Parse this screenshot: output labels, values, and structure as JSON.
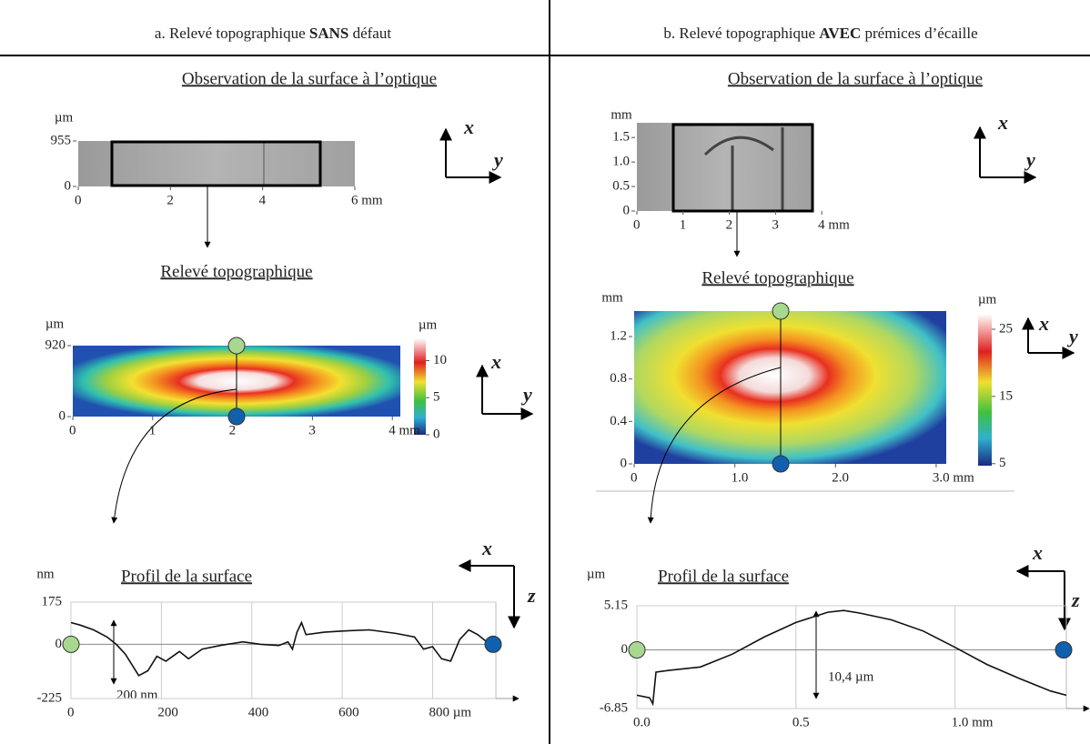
{
  "vectors": {
    "x": "x",
    "y": "y",
    "z": "z"
  },
  "left": {
    "title": {
      "prefix": "a. Relevé topographique ",
      "bold": "SANS",
      "suffix": " défaut"
    },
    "optical": {
      "heading": "Observation de la surface à l’optique",
      "y_unit": "µm",
      "xlim": [
        0,
        6
      ],
      "ylim": [
        0,
        955
      ],
      "yticks": [
        0,
        955
      ],
      "xticks": [
        0,
        2,
        4,
        {
          "value": 6,
          "label": "6 mm"
        }
      ]
    },
    "topography": {
      "heading": "Relevé topographique",
      "y_unit": "µm",
      "xlim": [
        0,
        4.1
      ],
      "ylim": [
        0,
        920
      ],
      "yticks": [
        0,
        920
      ],
      "xticks": [
        0,
        1,
        2,
        3,
        {
          "value": 4,
          "label": "4 mm"
        }
      ],
      "colorbar_unit": "µm",
      "colorbar_lim": [
        0,
        13
      ],
      "colorbar_ticks": [
        0,
        5,
        10
      ]
    },
    "profile": {
      "heading": "Profil de la surface",
      "y_unit": "nm",
      "xlim": [
        0,
        940
      ],
      "ylim": [
        -225,
        175
      ],
      "yticks": [
        -225,
        0,
        175
      ],
      "xticks": [
        0,
        200,
        400,
        600,
        {
          "value": 800,
          "label": "800 µm"
        }
      ],
      "x": [
        0,
        20,
        50,
        80,
        100,
        120,
        140,
        150,
        170,
        190,
        210,
        240,
        260,
        290,
        330,
        380,
        420,
        460,
        480,
        490,
        500,
        510,
        520,
        560,
        600,
        660,
        720,
        760,
        780,
        800,
        820,
        840,
        860,
        880,
        900,
        920
      ],
      "values": [
        90,
        80,
        60,
        30,
        0,
        -40,
        -100,
        -130,
        -110,
        -50,
        -70,
        -30,
        -60,
        -20,
        -5,
        10,
        0,
        -5,
        10,
        -20,
        50,
        90,
        40,
        50,
        55,
        60,
        45,
        30,
        -20,
        -10,
        -60,
        -70,
        20,
        60,
        40,
        10
      ],
      "annotation": "200 nm"
    }
  },
  "right": {
    "title": {
      "prefix": "b. Relevé topographique ",
      "bold": "AVEC",
      "suffix": " prémices d’écaille"
    },
    "optical": {
      "heading": "Observation de la surface à l’optique",
      "y_unit": "mm",
      "xlim": [
        0,
        3.8
      ],
      "ylim": [
        0,
        1.8
      ],
      "yticks": [
        0,
        0.5,
        {
          "value": 1,
          "label": "1.0"
        },
        1.5
      ],
      "xticks": [
        0,
        1,
        2,
        3,
        {
          "value": 4,
          "label": "4 mm"
        }
      ]
    },
    "topography": {
      "heading": "Relevé topographique",
      "y_unit": "mm",
      "xlim": [
        0,
        3.1
      ],
      "ylim": [
        0,
        1.44
      ],
      "yticks": [
        0,
        0.4,
        0.8,
        1.2
      ],
      "xticks": [
        0,
        {
          "value": 1,
          "label": "1.0"
        },
        {
          "value": 2,
          "label": "2.0"
        },
        {
          "value": 3,
          "label": "3.0 mm"
        }
      ],
      "colorbar_unit": "µm",
      "colorbar_lim": [
        4.7,
        27.3
      ],
      "colorbar_ticks": [
        5,
        15,
        25
      ]
    },
    "profile": {
      "heading": "Profil de la surface",
      "y_unit": "µm",
      "xlim": [
        0,
        1.35
      ],
      "ylim": [
        -6.85,
        5.15
      ],
      "yticks": [
        -6.85,
        0,
        5.15
      ],
      "xticks": [
        {
          "value": 0,
          "label": "0.0"
        },
        0.5,
        {
          "value": 1,
          "label": "1.0 mm"
        }
      ],
      "x": [
        0,
        0.04,
        0.05,
        0.06,
        0.1,
        0.2,
        0.3,
        0.4,
        0.5,
        0.6,
        0.65,
        0.7,
        0.8,
        0.9,
        1.0,
        1.1,
        1.2,
        1.3,
        1.35
      ],
      "values": [
        -5.3,
        -5.6,
        -6.3,
        -2.6,
        -2.4,
        -2.0,
        -0.5,
        1.5,
        3.2,
        4.4,
        4.6,
        4.3,
        3.5,
        2.2,
        0.3,
        -1.7,
        -3.3,
        -4.8,
        -5.3
      ],
      "annotation": "10,4 µm"
    }
  }
}
